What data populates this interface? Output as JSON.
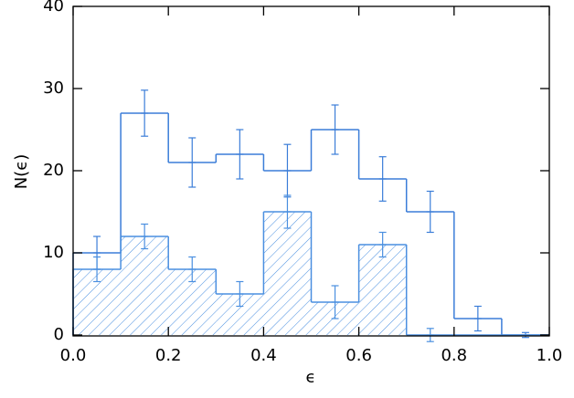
{
  "chart_data": {
    "type": "histogram",
    "xlabel": "ϵ",
    "ylabel": "N(ϵ)",
    "bins": [
      0.0,
      0.1,
      0.2,
      0.3,
      0.4,
      0.5,
      0.6,
      0.7,
      0.8,
      0.9,
      1.0
    ],
    "series": [
      {
        "color": "#3b7dd8",
        "hatch": false,
        "values": [
          10,
          27,
          21,
          22,
          20,
          25,
          19,
          15,
          2,
          0
        ],
        "errors": [
          2,
          2.8,
          3,
          3,
          3.2,
          3,
          2.7,
          2.5,
          1.5,
          0.3
        ]
      },
      {
        "color": "#4a8fe0",
        "hatch": true,
        "values": [
          8,
          12,
          8,
          5,
          15,
          4,
          11,
          0,
          0,
          0
        ],
        "errors": [
          1.5,
          1.5,
          1.5,
          1.5,
          2,
          2,
          1.5,
          0.8,
          null,
          null
        ]
      }
    ],
    "xlim": [
      0.0,
      1.0
    ],
    "ylim": [
      0,
      40
    ],
    "xticks": [
      {
        "value": 0.0,
        "label": "0.0"
      },
      {
        "value": 0.2,
        "label": "0.2"
      },
      {
        "value": 0.4,
        "label": "0.4"
      },
      {
        "value": 0.6,
        "label": "0.6"
      },
      {
        "value": 0.8,
        "label": "0.8"
      },
      {
        "value": 1.0,
        "label": "1.0"
      }
    ],
    "yticks": [
      0,
      10,
      20,
      30,
      40
    ]
  }
}
